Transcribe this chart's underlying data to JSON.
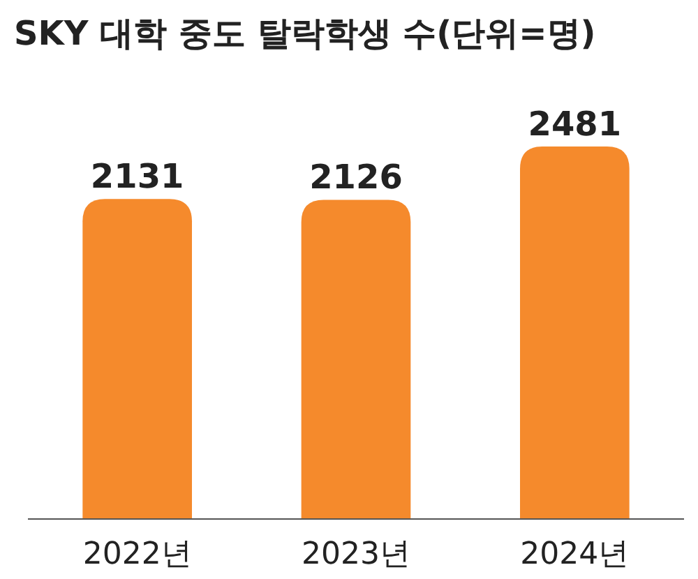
{
  "chart_data": {
    "type": "bar",
    "title": "SKY 대학 중도 탈락학생 수(단위=명)",
    "categories": [
      "2022년",
      "2023년",
      "2024년"
    ],
    "values": [
      2131,
      2126,
      2481
    ],
    "color": "#f58a2c",
    "data_labels": true
  }
}
